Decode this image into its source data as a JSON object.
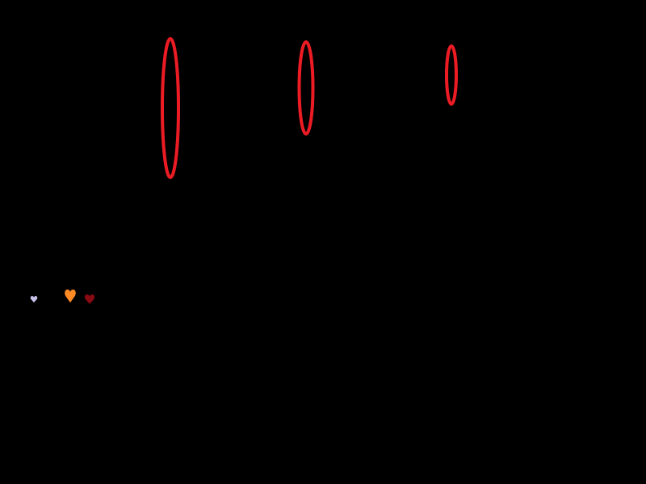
{
  "scene": {
    "background": "#000000",
    "ellipse_color": "#ed1c24",
    "hearts": [
      {
        "name": "lavender-heart",
        "color": "#c8c0e8"
      },
      {
        "name": "orange-heart",
        "color": "#ff8a24"
      },
      {
        "name": "dark-red-heart",
        "color": "#8a0a14"
      }
    ]
  }
}
